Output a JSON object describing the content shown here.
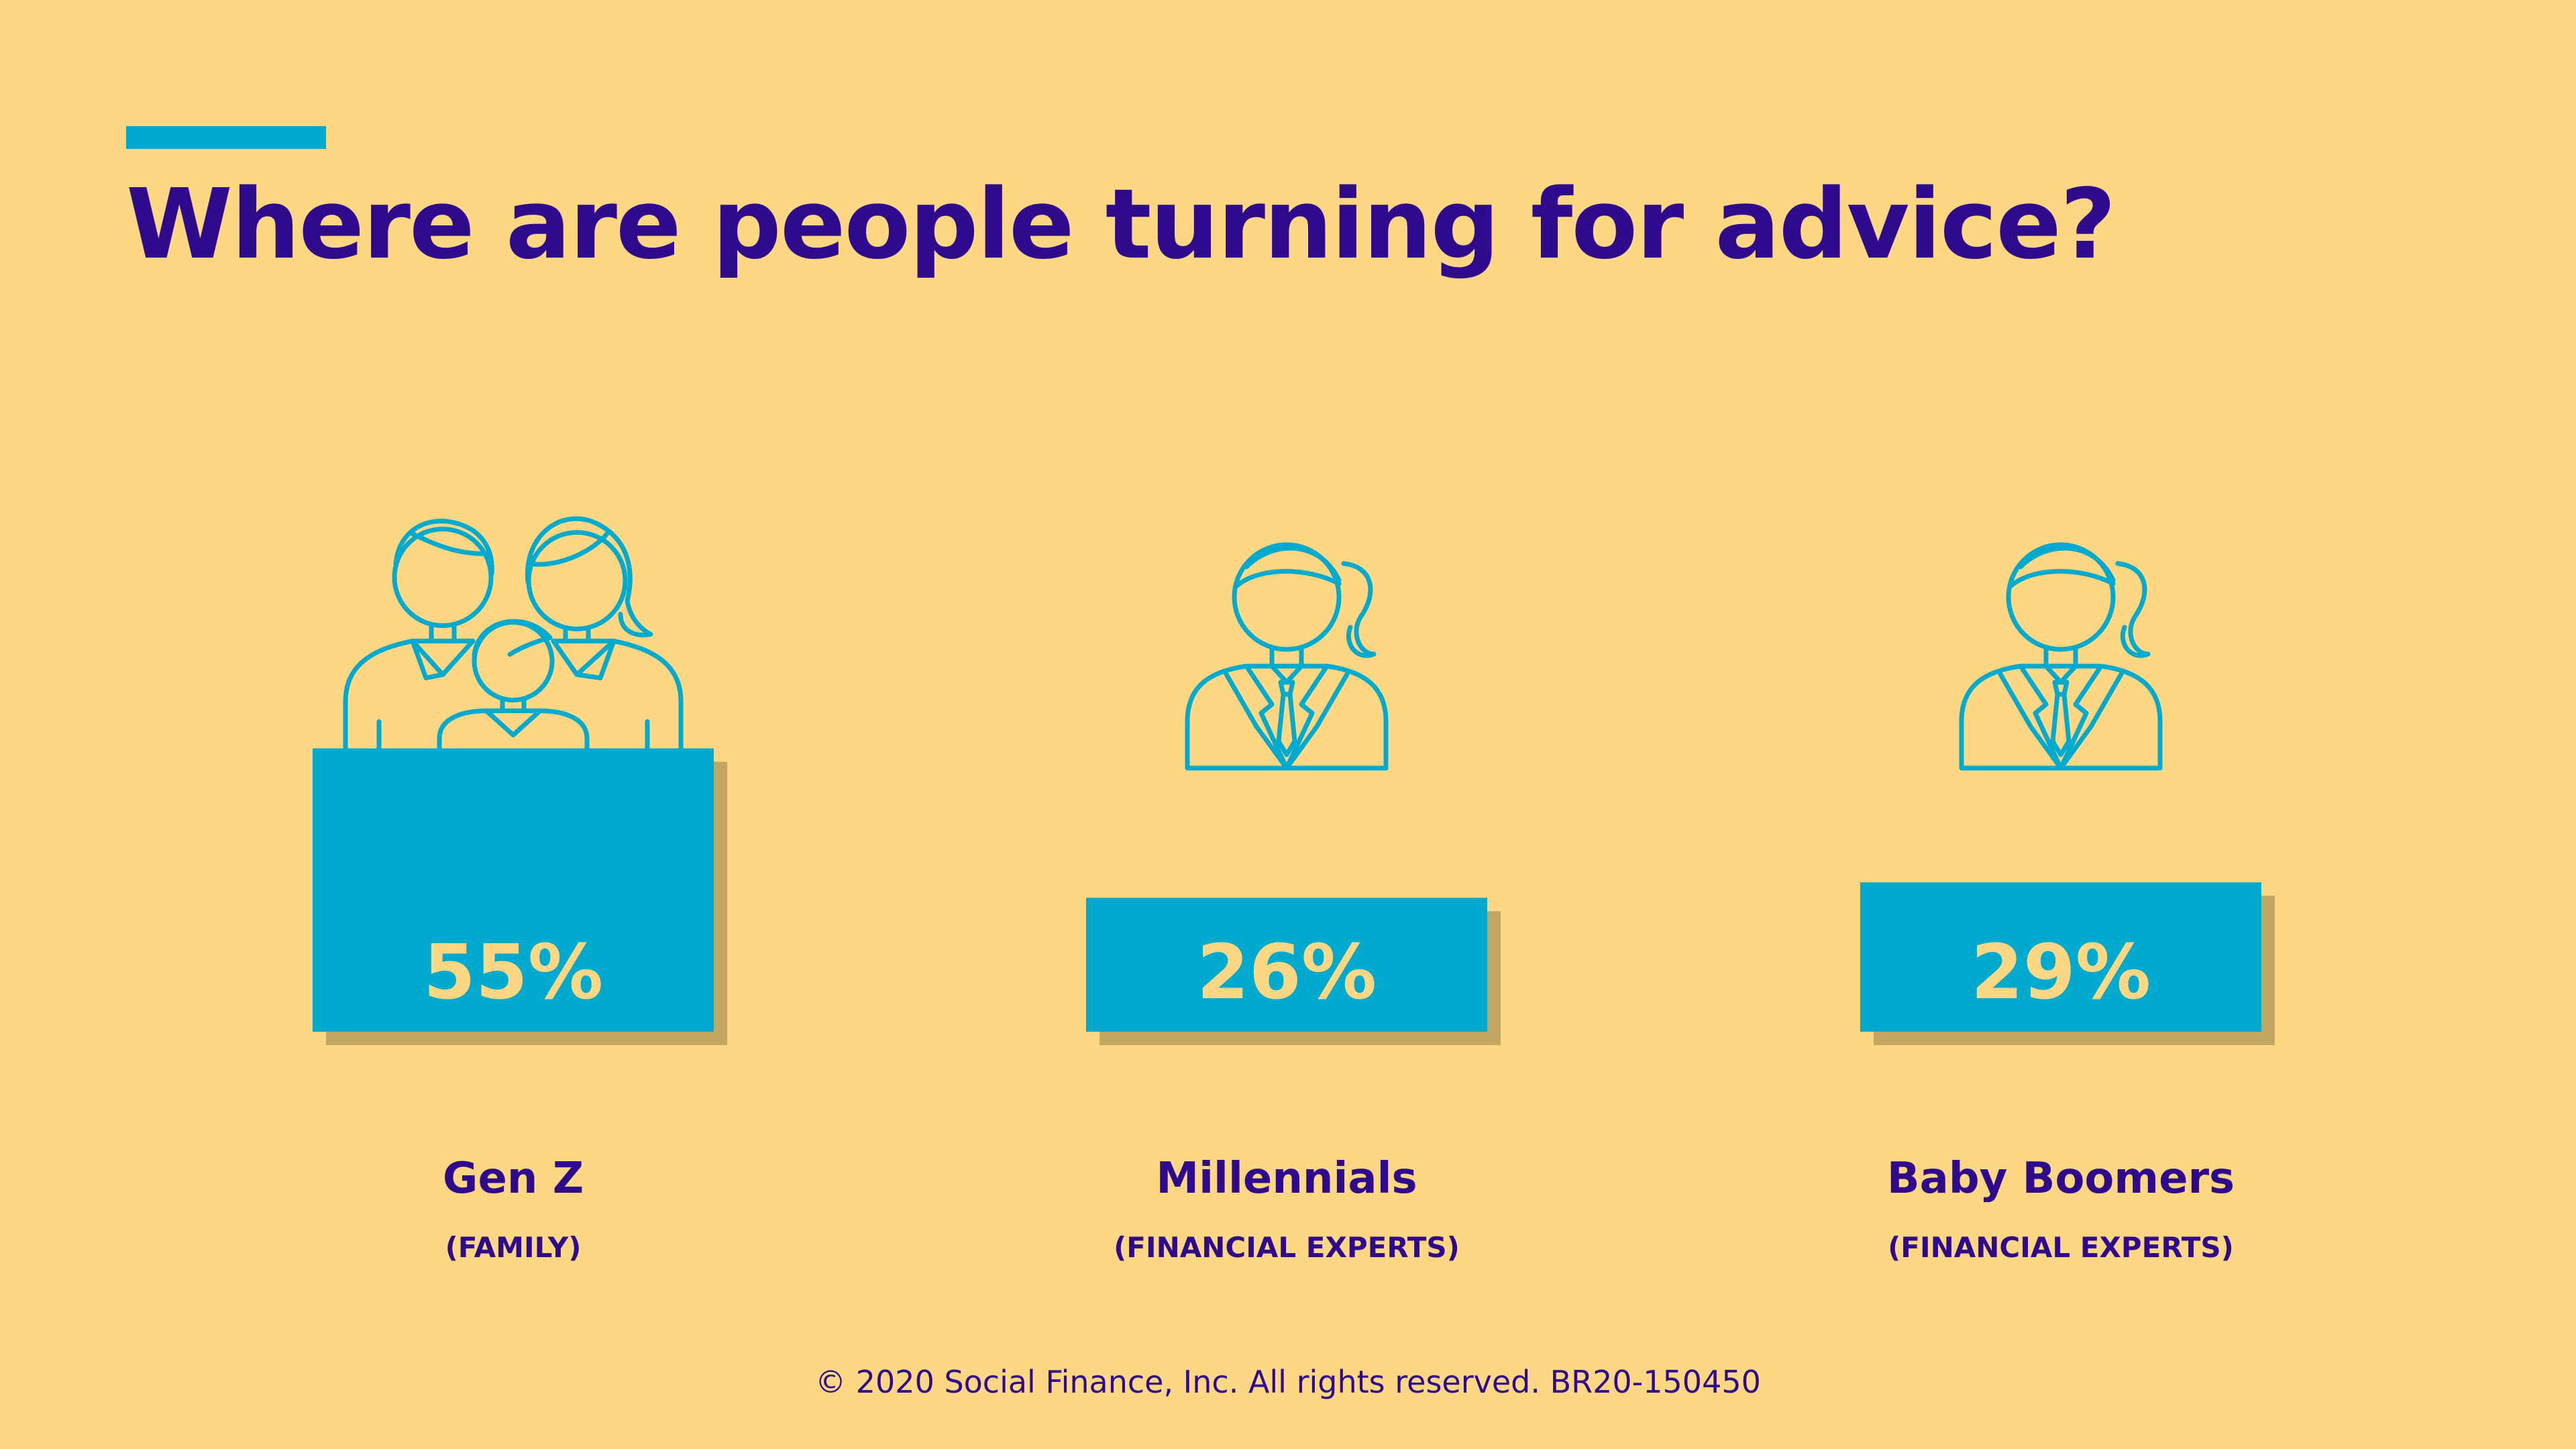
{
  "header": {
    "title": "Where are people turning for advice?"
  },
  "chart_data": {
    "type": "bar",
    "categories": [
      "Gen Z",
      "Millennials",
      "Baby Boomers"
    ],
    "subcategories": [
      "(FAMILY)",
      "(FINANCIAL EXPERTS)",
      "(FINANCIAL EXPERTS)"
    ],
    "values": [
      55,
      26,
      29
    ],
    "value_labels": [
      "55%",
      "26%",
      "29%"
    ],
    "unit": "%",
    "icons": [
      "family-icon",
      "financial-expert-icon",
      "financial-expert-icon"
    ],
    "grid": false,
    "legend": "none"
  },
  "colors": {
    "background": "#FDD783",
    "bar": "#00AACF",
    "bar_shadow": "#C2A762",
    "text": "#2E0A8C",
    "icon_stroke": "#00AACF"
  },
  "footer": {
    "copyright": "© 2020 Social Finance, Inc. All rights reserved. BR20-150450"
  }
}
